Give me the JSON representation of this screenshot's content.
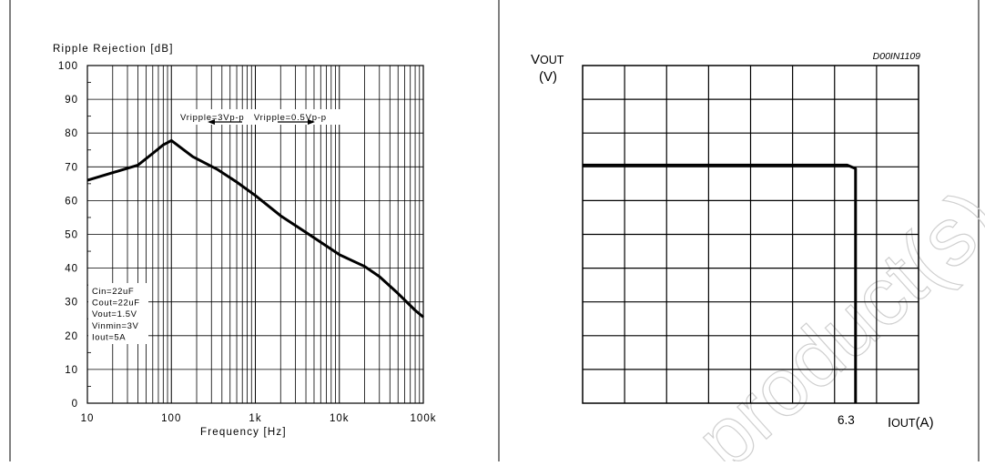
{
  "figure": {
    "border_color": "#000000",
    "watermark_text": "product(s)"
  },
  "chart_data": [
    {
      "type": "line",
      "ylabel": "Ripple Rejection [dB]",
      "xlabel": "Frequency [Hz]",
      "x_scale": "log",
      "xlim": [
        10,
        100000
      ],
      "ylim": [
        0,
        100
      ],
      "x_ticks": [
        {
          "value": 10,
          "label": "10"
        },
        {
          "value": 100,
          "label": "100"
        },
        {
          "value": 1000,
          "label": "1k"
        },
        {
          "value": 10000,
          "label": "10k"
        },
        {
          "value": 100000,
          "label": "100k"
        }
      ],
      "y_ticks": [
        0,
        10,
        20,
        30,
        40,
        50,
        60,
        70,
        80,
        90,
        100
      ],
      "grid": true,
      "series": [
        {
          "x": [
            10,
            40,
            60,
            80,
            100,
            180,
            350,
            600,
            1000,
            2000,
            5000,
            10000,
            20000,
            30000,
            50000,
            80000,
            100000
          ],
          "y": [
            66,
            70.5,
            74,
            76.5,
            77.8,
            73,
            69.3,
            65.5,
            61.5,
            55.5,
            49,
            44,
            40.5,
            37.5,
            32.5,
            27.5,
            25.5
          ]
        }
      ],
      "annotations": {
        "ripple_text": "Vripple=3Vp-p   Vripple=0.5Vp-p",
        "conditions": [
          "Cin=22uF",
          "Cout=22uF",
          "Vout=1.5V",
          "Vinmin=3V",
          "Iout=5A"
        ]
      }
    },
    {
      "type": "line",
      "ylabel_main": "V",
      "ylabel_sub": "OUT",
      "ylabel_unit": "(V)",
      "xlabel_main": "I",
      "xlabel_sub": "OUT",
      "xlabel_unit": "(A)",
      "doc_code": "D00IN1109",
      "x_marker_label": "6.3",
      "grid_cols": 8,
      "grid_rows": 10,
      "series": [
        {
          "x": [
            0,
            6.3,
            6.5,
            6.5
          ],
          "y": [
            7.05,
            7.05,
            6.95,
            0
          ]
        }
      ],
      "xlim": [
        0,
        8
      ],
      "ylim": [
        0,
        10
      ]
    }
  ]
}
